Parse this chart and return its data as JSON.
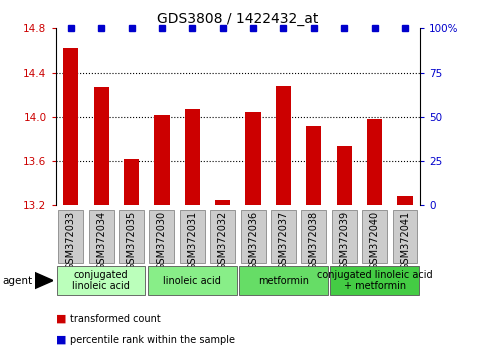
{
  "title": "GDS3808 / 1422432_at",
  "samples": [
    "GSM372033",
    "GSM372034",
    "GSM372035",
    "GSM372030",
    "GSM372031",
    "GSM372032",
    "GSM372036",
    "GSM372037",
    "GSM372038",
    "GSM372039",
    "GSM372040",
    "GSM372041"
  ],
  "bar_values": [
    14.62,
    14.27,
    13.62,
    14.02,
    14.07,
    13.25,
    14.04,
    14.28,
    13.92,
    13.74,
    13.98,
    13.28
  ],
  "ylim_left": [
    13.2,
    14.8
  ],
  "ylim_right": [
    0,
    100
  ],
  "yticks_left": [
    13.2,
    13.6,
    14.0,
    14.4,
    14.8
  ],
  "yticks_right": [
    0,
    25,
    50,
    75,
    100
  ],
  "ytick_labels_right": [
    "0",
    "25",
    "50",
    "75",
    "100%"
  ],
  "bar_color": "#cc0000",
  "percentile_color": "#0000cc",
  "agent_groups": [
    {
      "label": "conjugated\nlinoleic acid",
      "start": 0,
      "end": 3,
      "color": "#bbffbb"
    },
    {
      "label": "linoleic acid",
      "start": 3,
      "end": 6,
      "color": "#88ee88"
    },
    {
      "label": "metformin",
      "start": 6,
      "end": 9,
      "color": "#66dd66"
    },
    {
      "label": "conjugated linoleic acid\n+ metformin",
      "start": 9,
      "end": 12,
      "color": "#44cc44"
    }
  ],
  "legend_red_label": "transformed count",
  "legend_blue_label": "percentile rank within the sample",
  "title_fontsize": 10,
  "tick_fontsize": 7.5,
  "label_fontsize": 7,
  "bar_width": 0.5,
  "sample_box_color": "#cccccc",
  "sample_box_edge": "#888888"
}
